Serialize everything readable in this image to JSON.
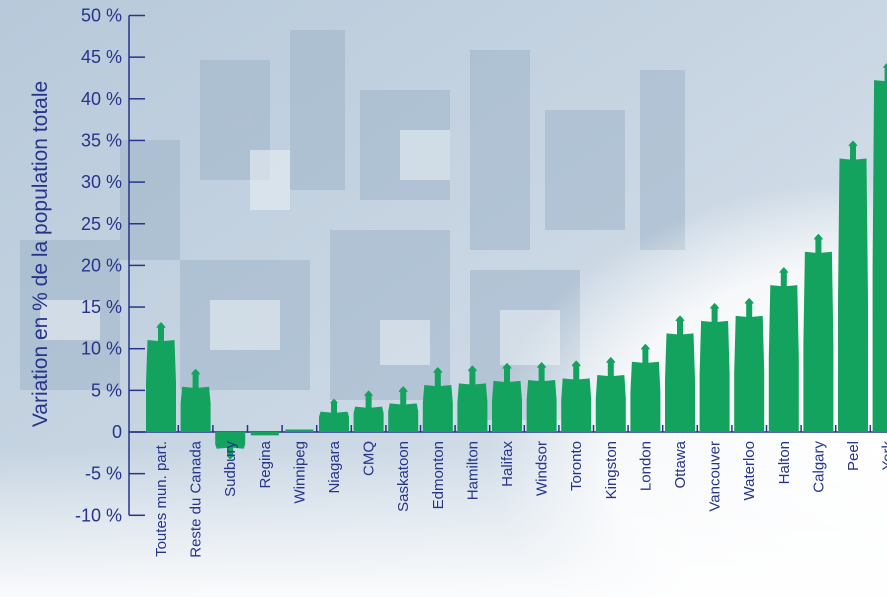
{
  "chart_data": {
    "type": "bar",
    "ylabel": "Variation en % de la population totale",
    "xlabel": "",
    "ylim": [
      -10,
      50
    ],
    "yticks": [
      {
        "value": 50,
        "label": "50 %"
      },
      {
        "value": 45,
        "label": "45 %"
      },
      {
        "value": 40,
        "label": "40 %"
      },
      {
        "value": 35,
        "label": "35 %"
      },
      {
        "value": 30,
        "label": "30 %"
      },
      {
        "value": 25,
        "label": "25 %"
      },
      {
        "value": 20,
        "label": "20 %"
      },
      {
        "value": 15,
        "label": "15 %"
      },
      {
        "value": 10,
        "label": "10 %"
      },
      {
        "value": 5,
        "label": "5 %"
      },
      {
        "value": 0,
        "label": "0"
      },
      {
        "value": -5,
        "label": "-5 %"
      },
      {
        "value": -10,
        "label": "-10 %"
      }
    ],
    "categories": [
      "Toutes mun. part.",
      "Reste du Canada",
      "Sudbury",
      "Regina",
      "Winnipeg",
      "Niagara",
      "CMQ",
      "Saskatoon",
      "Edmonton",
      "Hamilton",
      "Halifax",
      "Windsor",
      "Toronto",
      "Kingston",
      "London",
      "Ottawa",
      "Vancouver",
      "Waterloo",
      "Halton",
      "Calgary",
      "Peel",
      "York"
    ],
    "values": [
      13.2,
      7.6,
      -3.3,
      -0.4,
      0.3,
      4.0,
      5.0,
      5.5,
      7.8,
      8.0,
      8.3,
      8.4,
      8.6,
      9.0,
      10.6,
      14.0,
      15.5,
      16.1,
      19.8,
      23.8,
      35.0,
      44.4
    ],
    "colors": {
      "figure": "#13a35f",
      "axis": "#26348a",
      "text": "#26348a"
    },
    "mark_style": "human-figure pictogram"
  }
}
